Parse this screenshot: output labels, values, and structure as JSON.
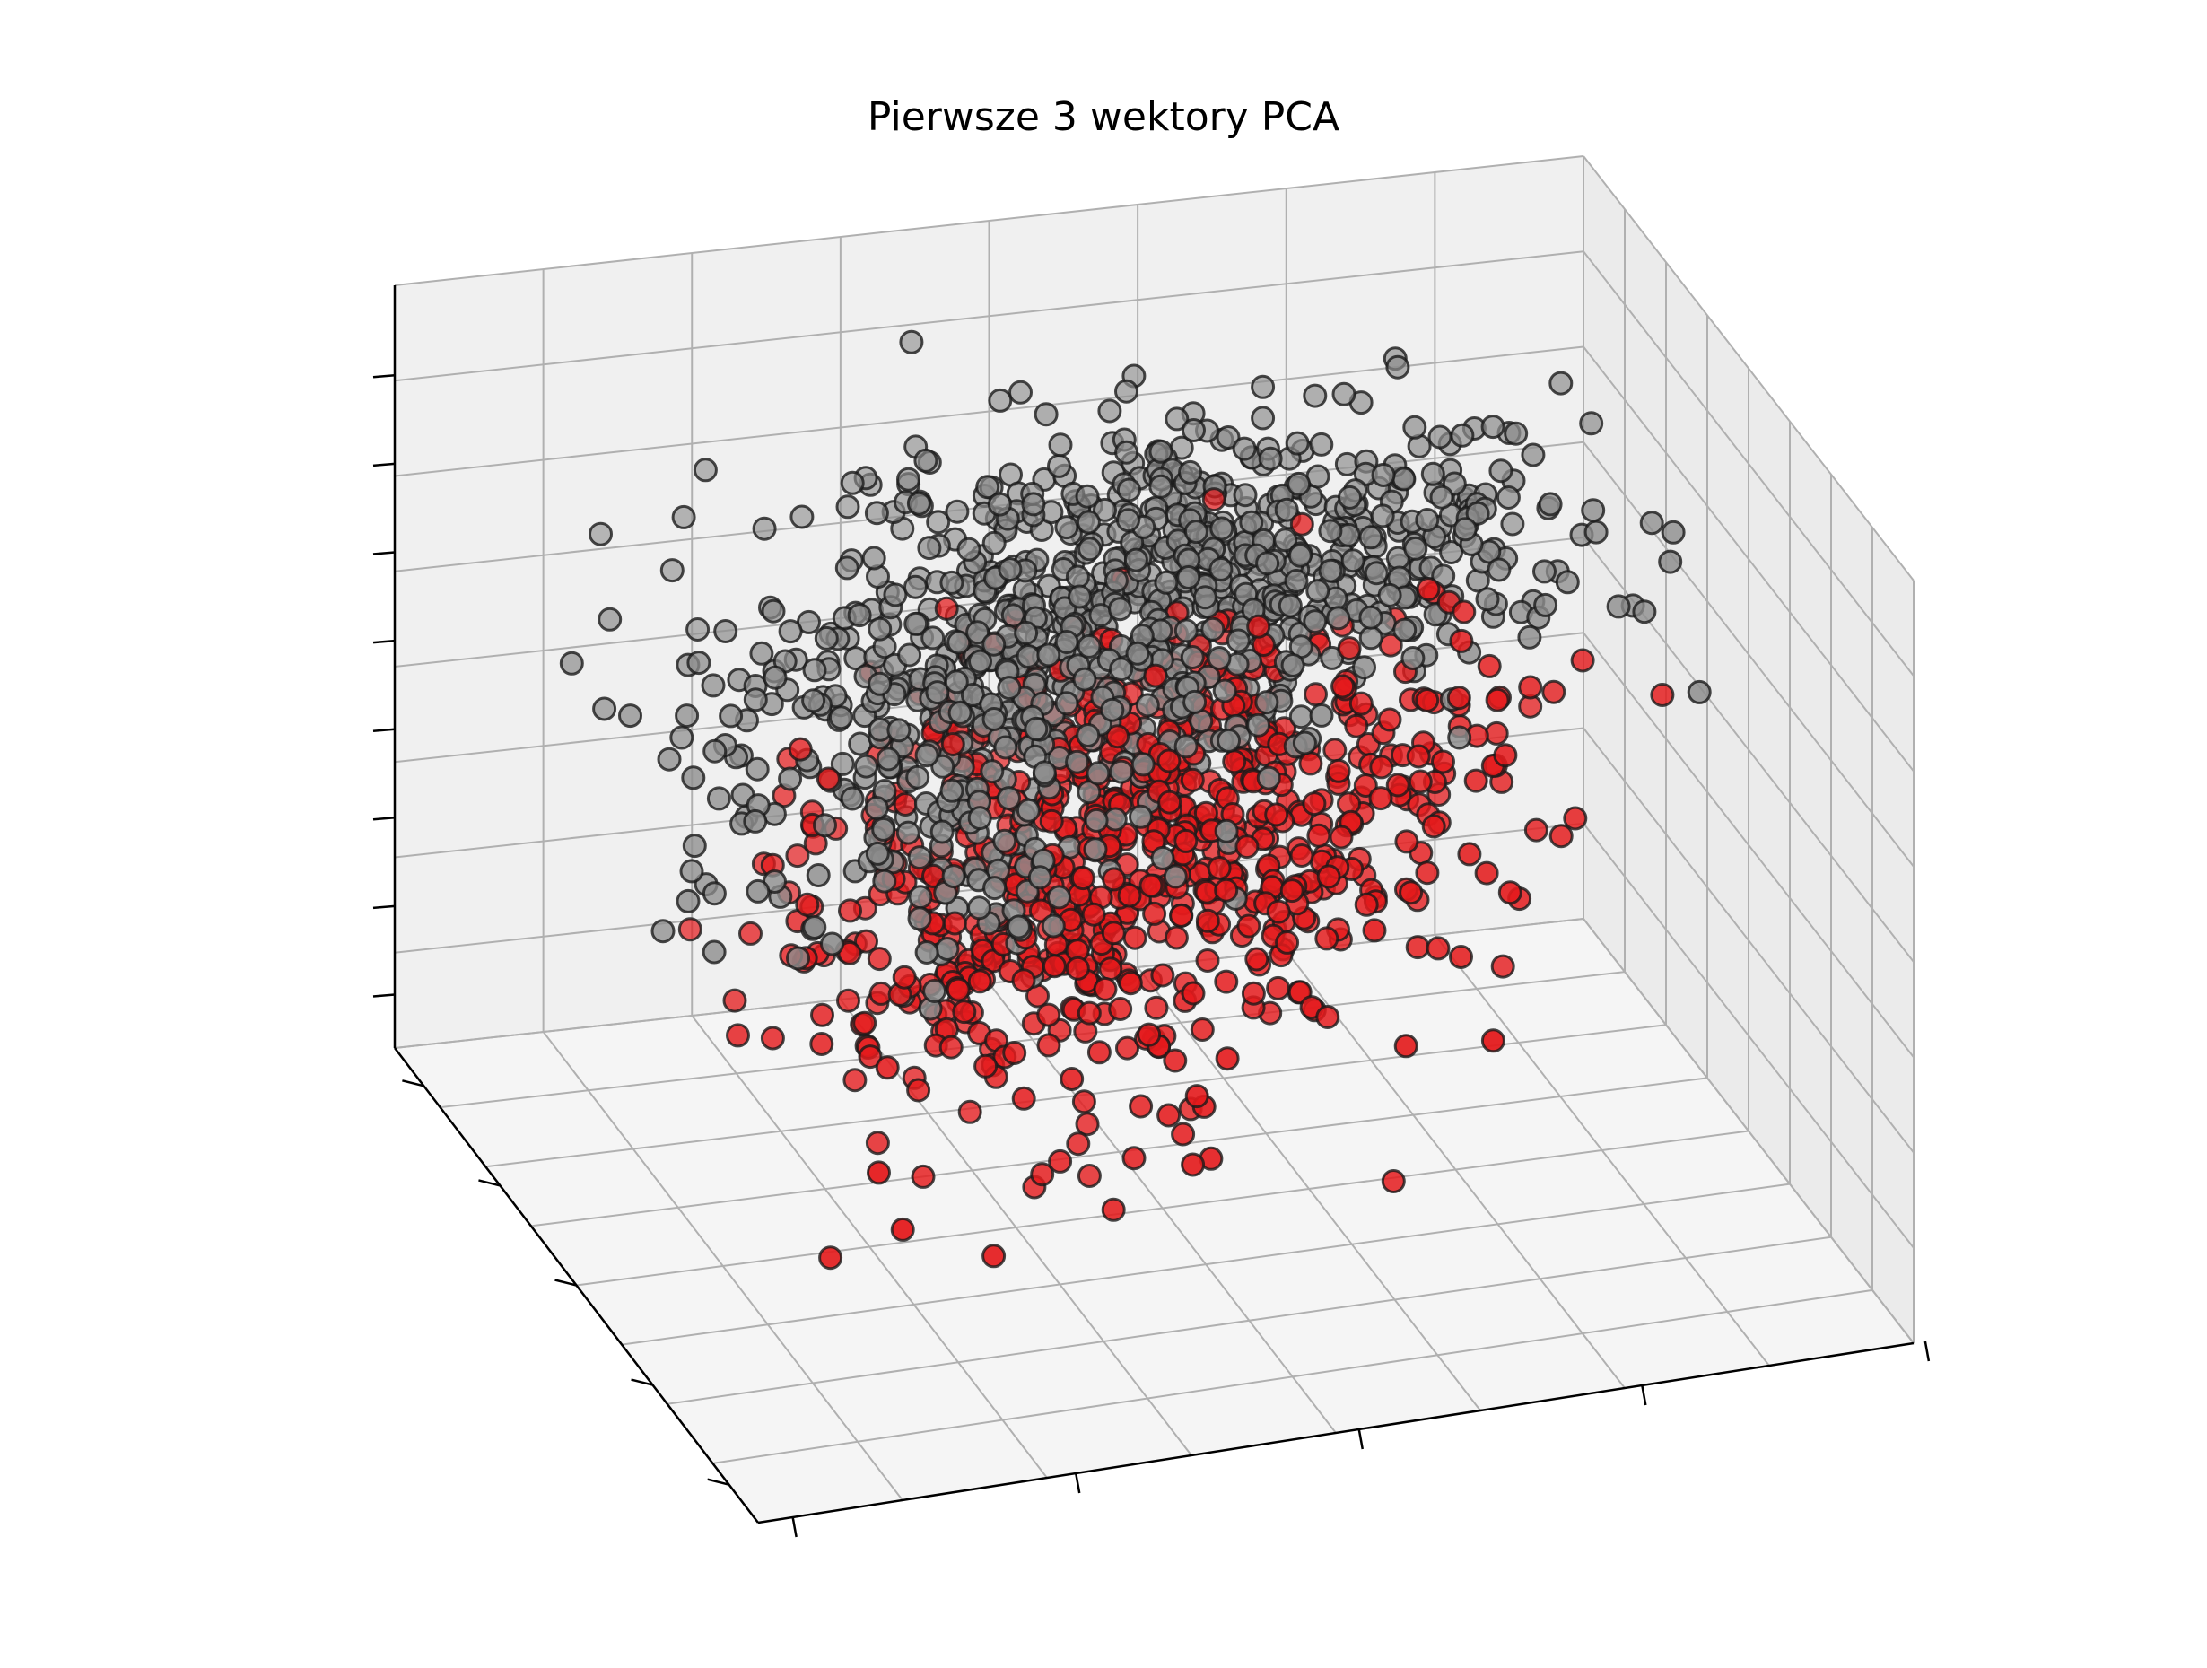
{
  "chart_data": {
    "type": "scatter",
    "projection": "3d",
    "title": "Pierwsze 3 wektory PCA",
    "xlabel": "",
    "ylabel": "",
    "zlabel": "",
    "tick_labels_visible": false,
    "grid": true,
    "legend": "none",
    "series_colors": {
      "grey": "#8c8c8c",
      "red": "#e41a1c"
    },
    "axis_ranges": {
      "x": [
        0,
        1
      ],
      "y": [
        0,
        1
      ],
      "z": [
        0,
        1
      ]
    },
    "series": [
      {
        "color_key": "grey",
        "count_estimate": 1100,
        "clusters": [
          {
            "center": [
              0.62,
              0.78,
              0.66
            ],
            "spread": [
              0.16,
              0.12,
              0.06
            ],
            "n": 620
          },
          {
            "center": [
              0.38,
              0.55,
              0.68
            ],
            "spread": [
              0.14,
              0.1,
              0.05
            ],
            "n": 260
          },
          {
            "center": [
              0.3,
              0.45,
              0.55
            ],
            "spread": [
              0.1,
              0.1,
              0.07
            ],
            "n": 120
          }
        ],
        "outliers": [
          [
            0.08,
            0.1,
            0.7
          ],
          [
            0.15,
            0.15,
            0.75
          ],
          [
            0.2,
            0.3,
            0.64
          ],
          [
            0.12,
            0.18,
            0.62
          ],
          [
            0.22,
            0.24,
            0.55
          ]
        ]
      },
      {
        "color_key": "red",
        "count_estimate": 900,
        "clusters": [
          {
            "center": [
              0.55,
              0.6,
              0.48
            ],
            "spread": [
              0.14,
              0.1,
              0.1
            ],
            "n": 520
          },
          {
            "center": [
              0.4,
              0.48,
              0.35
            ],
            "spread": [
              0.12,
              0.1,
              0.1
            ],
            "n": 260
          }
        ],
        "outliers": [
          [
            0.15,
            0.08,
            0.3
          ],
          [
            0.1,
            0.12,
            0.25
          ],
          [
            0.18,
            0.22,
            0.42
          ],
          [
            0.25,
            0.15,
            0.2
          ],
          [
            0.12,
            0.05,
            0.4
          ]
        ]
      }
    ]
  }
}
